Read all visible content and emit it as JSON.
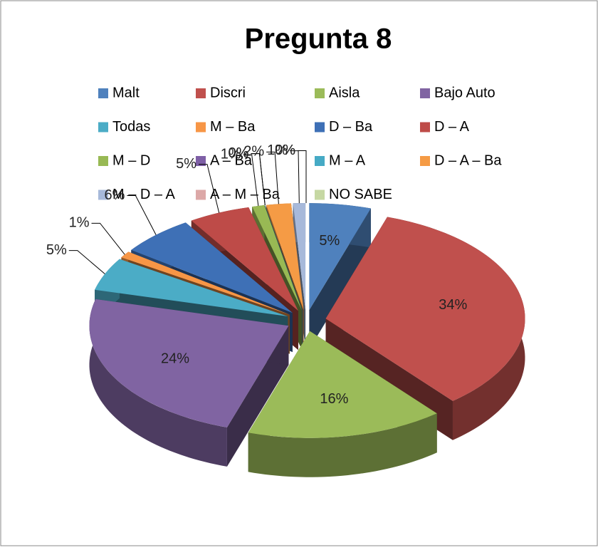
{
  "chart_data": {
    "type": "pie",
    "title": "Pregunta 8",
    "categories": [
      "Malt",
      "Discri",
      "Aisla",
      "Bajo Auto",
      "Todas",
      "M – Ba",
      "D – Ba",
      "D – A",
      "M – D",
      "A – Ba",
      "M – A",
      "D – A – Ba",
      "M – D – A",
      "A – M – Ba",
      "NO SABE"
    ],
    "values": [
      5,
      34,
      16,
      24,
      5,
      1,
      6,
      5,
      1,
      0,
      0,
      2,
      1,
      0,
      0
    ],
    "value_labels": [
      "5%",
      "34%",
      "16%",
      "24%",
      "5%",
      "1%",
      "6%",
      "5%",
      "1%",
      "0%",
      "0%",
      "2%",
      "1%",
      "0%",
      "0%"
    ],
    "colors": [
      "#4F81BD",
      "#C0504D",
      "#9BBB59",
      "#8064A2",
      "#4BACC6",
      "#F79646",
      "#3E70B6",
      "#BE4B48",
      "#98B954",
      "#7E5FA6",
      "#46AAC5",
      "#F59B45",
      "#A7B9DA",
      "#DCA8A7",
      "#C6D8A3"
    ],
    "legend": "top"
  }
}
